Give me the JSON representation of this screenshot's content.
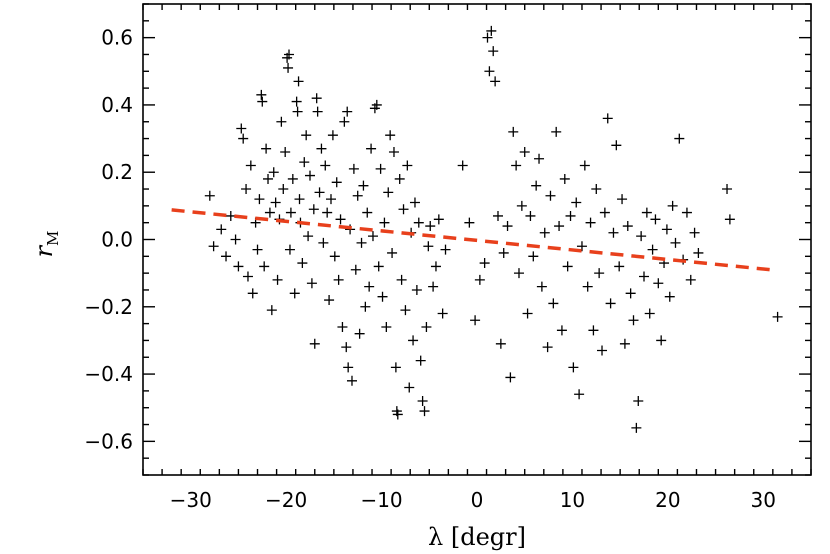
{
  "chart_data": {
    "type": "scatter",
    "xlabel": "λ [degr]",
    "ylabel": {
      "main": "r",
      "sub": "M"
    },
    "xlim": [
      -35,
      35
    ],
    "ylim": [
      -0.7,
      0.7
    ],
    "xticks": [
      -30,
      -20,
      -10,
      0,
      10,
      20,
      30
    ],
    "xtick_labels": [
      "−30",
      "−20",
      "−10",
      "0",
      "10",
      "20",
      "30"
    ],
    "yticks": [
      -0.6,
      -0.4,
      -0.2,
      0.0,
      0.2,
      0.4,
      0.6
    ],
    "ytick_labels": [
      "−0.6",
      "−0.4",
      "−0.2",
      "0.0",
      "0.2",
      "0.4",
      "0.6"
    ],
    "marker": "plus",
    "marker_color": "#000000",
    "fit_line": {
      "x": [
        -32,
        31.5
      ],
      "y": [
        0.088,
        -0.092
      ],
      "style": "dashed",
      "color": "#e8401c"
    },
    "series": [
      {
        "points": [
          [
            -28,
            0.13
          ],
          [
            -27.6,
            -0.02
          ],
          [
            -26.8,
            0.03
          ],
          [
            -26.3,
            -0.05
          ],
          [
            -25.8,
            0.07
          ],
          [
            -25.3,
            0.0
          ],
          [
            -25.0,
            -0.08
          ],
          [
            -24.7,
            0.33
          ],
          [
            -24.5,
            0.3
          ],
          [
            -24.2,
            0.15
          ],
          [
            -24.0,
            -0.11
          ],
          [
            -23.7,
            0.22
          ],
          [
            -23.5,
            -0.16
          ],
          [
            -23.2,
            0.05
          ],
          [
            -23.0,
            -0.03
          ],
          [
            -22.8,
            0.12
          ],
          [
            -22.6,
            0.43
          ],
          [
            -22.5,
            0.41
          ],
          [
            -22.3,
            -0.08
          ],
          [
            -22.1,
            0.27
          ],
          [
            -21.9,
            0.18
          ],
          [
            -21.7,
            0.08
          ],
          [
            -21.5,
            -0.21
          ],
          [
            -21.3,
            0.2
          ],
          [
            -21.1,
            0.11
          ],
          [
            -20.9,
            -0.12
          ],
          [
            -20.7,
            0.06
          ],
          [
            -20.5,
            0.35
          ],
          [
            -20.3,
            0.15
          ],
          [
            -20.1,
            0.26
          ],
          [
            -19.9,
            0.54
          ],
          [
            -19.8,
            0.51
          ],
          [
            -19.7,
            0.55
          ],
          [
            -19.6,
            -0.03
          ],
          [
            -19.5,
            0.08
          ],
          [
            -19.3,
            0.18
          ],
          [
            -19.1,
            -0.16
          ],
          [
            -18.9,
            0.41
          ],
          [
            -18.8,
            0.38
          ],
          [
            -18.7,
            0.47
          ],
          [
            -18.6,
            0.12
          ],
          [
            -18.5,
            0.05
          ],
          [
            -18.3,
            -0.07
          ],
          [
            -18.1,
            0.23
          ],
          [
            -17.9,
            0.31
          ],
          [
            -17.7,
            0.01
          ],
          [
            -17.5,
            0.19
          ],
          [
            -17.3,
            -0.13
          ],
          [
            -17.1,
            0.09
          ],
          [
            -17.0,
            -0.31
          ],
          [
            -16.8,
            0.42
          ],
          [
            -16.7,
            0.38
          ],
          [
            -16.5,
            0.14
          ],
          [
            -16.3,
            0.27
          ],
          [
            -16.1,
            -0.01
          ],
          [
            -15.9,
            0.22
          ],
          [
            -15.7,
            0.08
          ],
          [
            -15.5,
            -0.18
          ],
          [
            -15.3,
            0.12
          ],
          [
            -15.1,
            0.31
          ],
          [
            -14.9,
            -0.05
          ],
          [
            -14.7,
            0.17
          ],
          [
            -14.5,
            -0.12
          ],
          [
            -14.3,
            0.06
          ],
          [
            -14.1,
            -0.26
          ],
          [
            -13.9,
            0.35
          ],
          [
            -13.7,
            -0.32
          ],
          [
            -13.6,
            0.38
          ],
          [
            -13.5,
            -0.38
          ],
          [
            -13.3,
            0.03
          ],
          [
            -13.1,
            -0.42
          ],
          [
            -12.9,
            0.21
          ],
          [
            -12.7,
            -0.09
          ],
          [
            -12.5,
            0.13
          ],
          [
            -12.3,
            -0.28
          ],
          [
            -12.1,
            -0.01
          ],
          [
            -11.9,
            0.16
          ],
          [
            -11.7,
            -0.2
          ],
          [
            -11.5,
            0.08
          ],
          [
            -11.3,
            -0.14
          ],
          [
            -11.1,
            0.27
          ],
          [
            -10.9,
            0.01
          ],
          [
            -10.7,
            0.39
          ],
          [
            -10.5,
            0.4
          ],
          [
            -10.3,
            -0.08
          ],
          [
            -10.1,
            0.21
          ],
          [
            -9.9,
            -0.17
          ],
          [
            -9.7,
            0.05
          ],
          [
            -9.5,
            -0.26
          ],
          [
            -9.3,
            0.14
          ],
          [
            -9.1,
            0.31
          ],
          [
            -8.9,
            -0.04
          ],
          [
            -8.7,
            0.26
          ],
          [
            -8.5,
            -0.38
          ],
          [
            -8.4,
            -0.51
          ],
          [
            -8.3,
            -0.52
          ],
          [
            -8.1,
            0.18
          ],
          [
            -7.9,
            -0.12
          ],
          [
            -7.7,
            0.09
          ],
          [
            -7.5,
            -0.21
          ],
          [
            -7.3,
            0.22
          ],
          [
            -7.1,
            -0.44
          ],
          [
            -6.9,
            0.02
          ],
          [
            -6.7,
            -0.3
          ],
          [
            -6.5,
            0.11
          ],
          [
            -6.3,
            -0.15
          ],
          [
            -6.1,
            0.05
          ],
          [
            -5.9,
            -0.36
          ],
          [
            -5.7,
            -0.48
          ],
          [
            -5.5,
            -0.51
          ],
          [
            -5.3,
            -0.26
          ],
          [
            -5.1,
            -0.02
          ],
          [
            -4.9,
            0.04
          ],
          [
            -4.6,
            -0.14
          ],
          [
            -4.3,
            -0.08
          ],
          [
            -4.0,
            0.06
          ],
          [
            -3.6,
            -0.22
          ],
          [
            -3.3,
            -0.03
          ],
          [
            -1.5,
            0.22
          ],
          [
            -0.8,
            0.05
          ],
          [
            -0.2,
            -0.24
          ],
          [
            0.3,
            -0.12
          ],
          [
            0.8,
            -0.07
          ],
          [
            1.1,
            0.6
          ],
          [
            1.3,
            0.5
          ],
          [
            1.5,
            0.62
          ],
          [
            1.7,
            0.56
          ],
          [
            1.9,
            0.47
          ],
          [
            2.2,
            0.07
          ],
          [
            2.5,
            -0.31
          ],
          [
            2.8,
            -0.04
          ],
          [
            3.2,
            0.04
          ],
          [
            3.5,
            -0.41
          ],
          [
            3.8,
            0.32
          ],
          [
            4.1,
            0.22
          ],
          [
            4.4,
            -0.1
          ],
          [
            4.7,
            0.1
          ],
          [
            5.0,
            0.26
          ],
          [
            5.3,
            -0.22
          ],
          [
            5.6,
            0.07
          ],
          [
            5.9,
            -0.05
          ],
          [
            6.2,
            0.16
          ],
          [
            6.5,
            0.24
          ],
          [
            6.8,
            -0.14
          ],
          [
            7.1,
            0.02
          ],
          [
            7.4,
            -0.32
          ],
          [
            7.7,
            0.13
          ],
          [
            8.0,
            -0.19
          ],
          [
            8.3,
            0.32
          ],
          [
            8.6,
            0.04
          ],
          [
            8.9,
            -0.27
          ],
          [
            9.2,
            0.18
          ],
          [
            9.5,
            -0.08
          ],
          [
            9.8,
            0.07
          ],
          [
            10.1,
            -0.38
          ],
          [
            10.4,
            0.11
          ],
          [
            10.7,
            -0.46
          ],
          [
            11.0,
            -0.02
          ],
          [
            11.3,
            0.22
          ],
          [
            11.6,
            -0.14
          ],
          [
            11.9,
            0.05
          ],
          [
            12.2,
            -0.27
          ],
          [
            12.5,
            0.15
          ],
          [
            12.8,
            -0.1
          ],
          [
            13.1,
            -0.33
          ],
          [
            13.4,
            0.08
          ],
          [
            13.7,
            0.36
          ],
          [
            14.0,
            -0.19
          ],
          [
            14.3,
            0.02
          ],
          [
            14.6,
            0.28
          ],
          [
            14.9,
            -0.08
          ],
          [
            15.2,
            0.12
          ],
          [
            15.5,
            -0.31
          ],
          [
            15.8,
            0.04
          ],
          [
            16.1,
            -0.16
          ],
          [
            16.4,
            -0.24
          ],
          [
            16.7,
            -0.56
          ],
          [
            16.9,
            -0.48
          ],
          [
            17.2,
            0.01
          ],
          [
            17.5,
            -0.11
          ],
          [
            17.8,
            0.08
          ],
          [
            18.1,
            -0.22
          ],
          [
            18.4,
            -0.03
          ],
          [
            18.7,
            0.06
          ],
          [
            19.0,
            -0.13
          ],
          [
            19.3,
            -0.3
          ],
          [
            19.6,
            -0.07
          ],
          [
            19.9,
            0.03
          ],
          [
            20.2,
            -0.17
          ],
          [
            20.5,
            0.1
          ],
          [
            20.8,
            -0.01
          ],
          [
            21.2,
            0.3
          ],
          [
            21.6,
            -0.06
          ],
          [
            22.0,
            0.08
          ],
          [
            22.4,
            -0.12
          ],
          [
            22.8,
            0.02
          ],
          [
            23.2,
            -0.04
          ],
          [
            26.2,
            0.15
          ],
          [
            26.5,
            0.06
          ],
          [
            31.5,
            -0.23
          ]
        ]
      }
    ]
  }
}
